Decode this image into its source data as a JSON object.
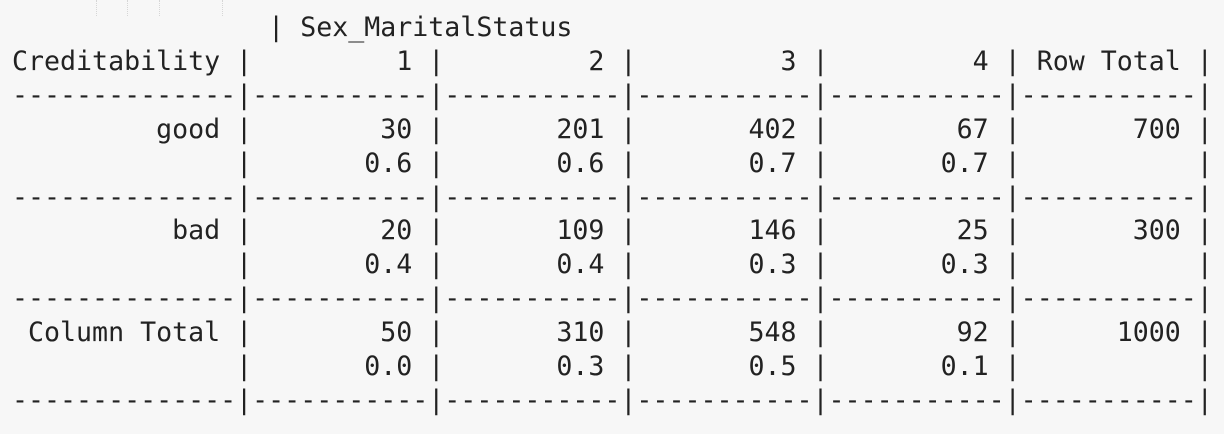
{
  "table": {
    "header_line": "                | Sex_MaritalStatus",
    "column_header_line": "Creditability |         1 |         2 |         3 |         4 | Row Total |",
    "separator_line": "--------------|-----------|-----------|-----------|-----------|-----------|",
    "rows": [
      {
        "counts_line": "         good |        30 |       201 |       402 |        67 |       700 |",
        "props_line": "              |       0.6 |       0.6 |       0.7 |       0.7 |           |"
      },
      {
        "counts_line": "          bad |        20 |       109 |       146 |        25 |       300 |",
        "props_line": "              |       0.4 |       0.4 |       0.3 |       0.3 |           |"
      },
      {
        "counts_line": " Column Total |        50 |       310 |       548 |        92 |      1000 |",
        "props_line": "              |       0.0 |       0.3 |       0.5 |       0.1 |           |"
      }
    ]
  }
}
